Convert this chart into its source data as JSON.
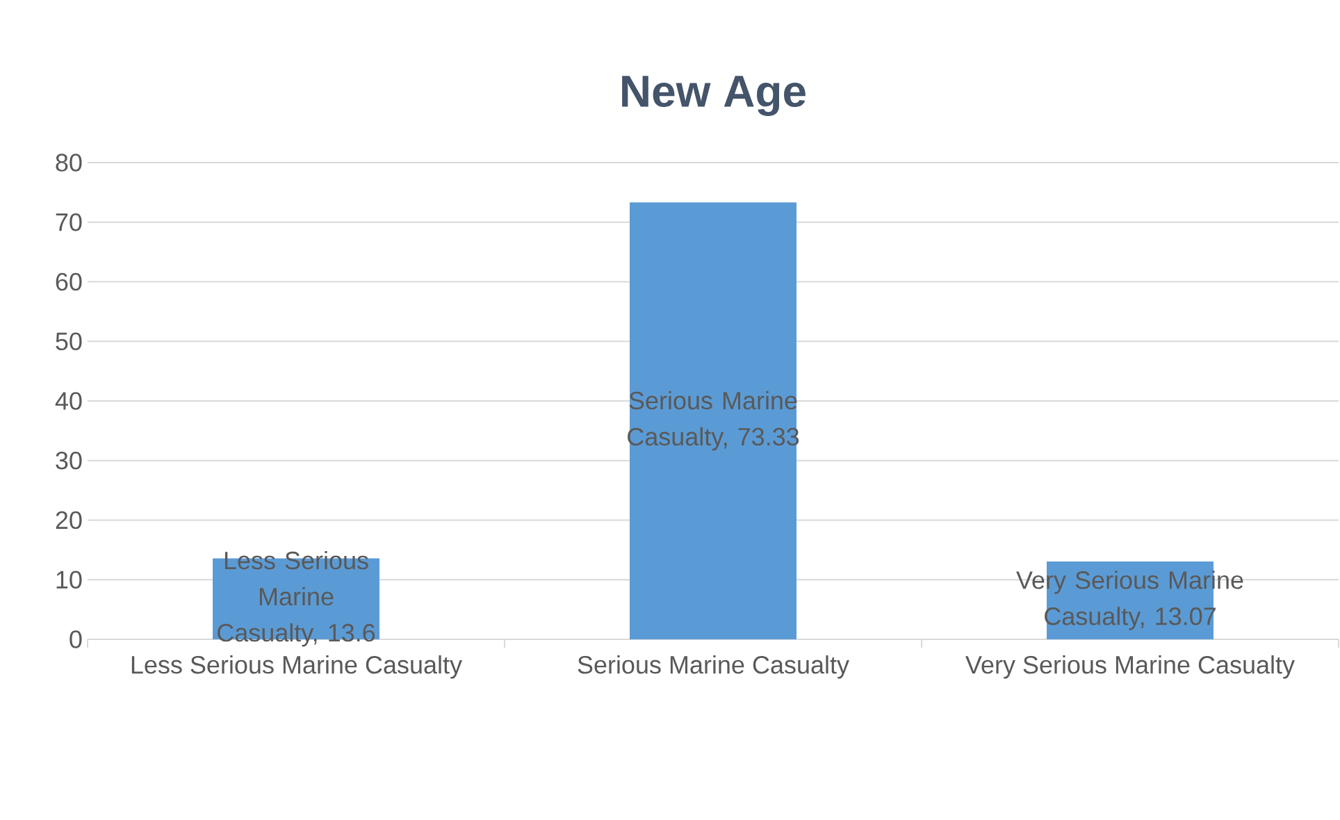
{
  "chart_data": {
    "type": "bar",
    "title": "New Age",
    "categories": [
      "Less Serious Marine Casualty",
      "Serious Marine Casualty",
      "Very Serious Marine Casualty"
    ],
    "values": [
      13.6,
      73.33,
      13.07
    ],
    "value_labels": [
      "Less Serious Marine Casualty, 13.6",
      "Serious Marine Casualty, 73.33",
      "Very Serious Marine Casualty, 13.07"
    ],
    "color": "#5b9bd5",
    "ylim": [
      0,
      80
    ],
    "yticks": [
      0,
      10,
      20,
      30,
      40,
      50,
      60,
      70,
      80
    ],
    "grid": "y"
  }
}
